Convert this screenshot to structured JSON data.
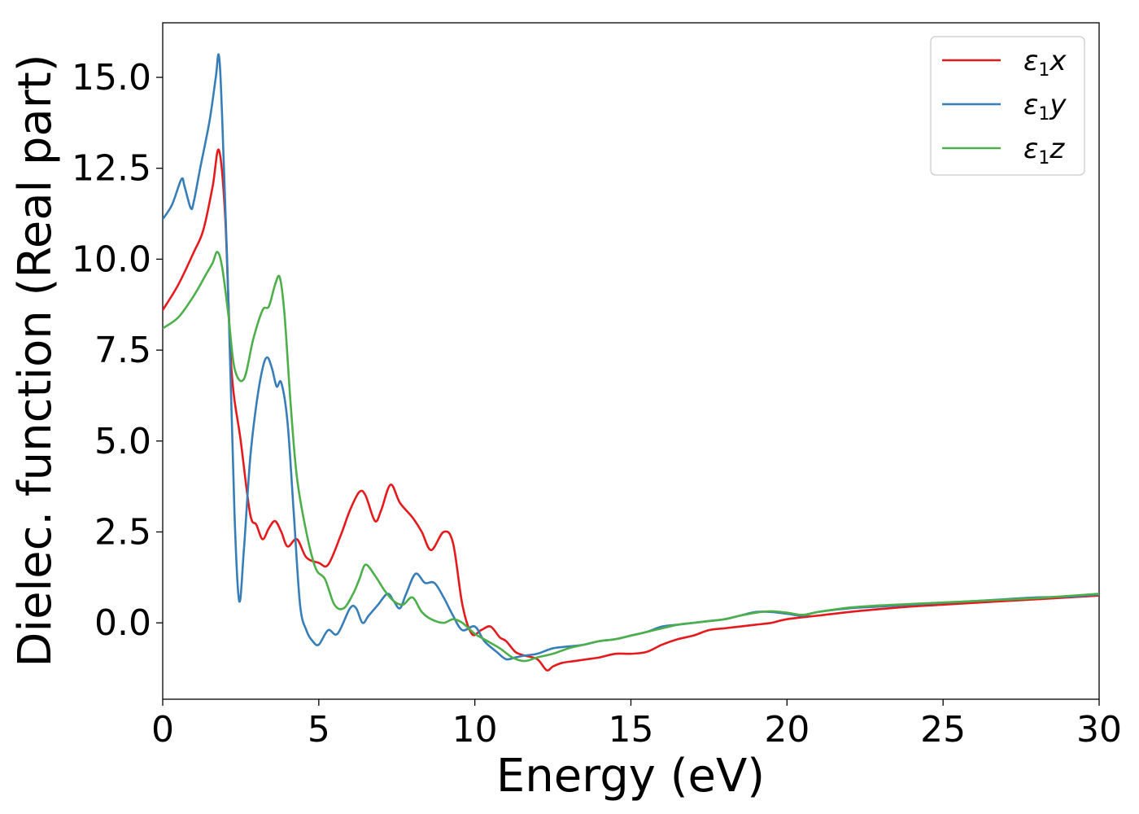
{
  "chart_data": {
    "type": "line",
    "xlabel": "Energy (eV)",
    "ylabel": "Dielec. function (Real part)",
    "xlim": [
      0,
      30
    ],
    "ylim": [
      -2.1,
      16.5
    ],
    "xticks": [
      0,
      5,
      10,
      15,
      20,
      25,
      30
    ],
    "yticks": [
      0.0,
      2.5,
      5.0,
      7.5,
      10.0,
      12.5,
      15.0
    ],
    "xtick_labels": [
      "0",
      "5",
      "10",
      "15",
      "20",
      "25",
      "30"
    ],
    "ytick_labels": [
      "0.0",
      "2.5",
      "5.0",
      "7.5",
      "10.0",
      "12.5",
      "15.0"
    ],
    "grid": false,
    "legend_position": "top-right",
    "series": [
      {
        "name": "ε1x",
        "legend_symbol": "ε",
        "legend_sub": "1",
        "legend_var": "x",
        "color": "#e41a1c",
        "x": [
          0,
          0.5,
          1.0,
          1.3,
          1.6,
          1.8,
          2.0,
          2.2,
          2.5,
          2.8,
          3.0,
          3.2,
          3.4,
          3.6,
          3.8,
          4.0,
          4.3,
          4.6,
          5.0,
          5.3,
          5.7,
          6.0,
          6.3,
          6.5,
          6.8,
          7.0,
          7.3,
          7.6,
          8.0,
          8.3,
          8.6,
          9.0,
          9.3,
          9.6,
          9.9,
          10.2,
          10.5,
          10.8,
          11.0,
          11.3,
          11.6,
          12.0,
          12.3,
          12.5,
          12.8,
          13.2,
          13.6,
          14.0,
          14.5,
          15.0,
          15.5,
          16.0,
          16.5,
          17.0,
          17.5,
          18.0,
          18.5,
          19.0,
          19.5,
          20.0,
          21.0,
          22.0,
          23.0,
          24.0,
          25.0,
          26.0,
          27.0,
          28.0,
          29.0,
          30.0
        ],
        "y": [
          8.6,
          9.3,
          10.2,
          10.8,
          12.0,
          13.0,
          11.2,
          7.0,
          5.0,
          3.0,
          2.7,
          2.3,
          2.6,
          2.8,
          2.5,
          2.1,
          2.3,
          1.8,
          1.65,
          1.6,
          2.4,
          3.1,
          3.6,
          3.5,
          2.8,
          3.1,
          3.8,
          3.3,
          2.9,
          2.5,
          2.0,
          2.5,
          2.2,
          0.5,
          -0.3,
          -0.2,
          -0.1,
          -0.4,
          -0.5,
          -0.8,
          -0.9,
          -1.0,
          -1.3,
          -1.2,
          -1.1,
          -1.05,
          -1.0,
          -0.95,
          -0.85,
          -0.85,
          -0.8,
          -0.6,
          -0.45,
          -0.35,
          -0.2,
          -0.15,
          -0.1,
          -0.05,
          0.0,
          0.1,
          0.2,
          0.3,
          0.38,
          0.45,
          0.5,
          0.55,
          0.6,
          0.65,
          0.7,
          0.75
        ]
      },
      {
        "name": "ε1y",
        "legend_symbol": "ε",
        "legend_sub": "1",
        "legend_var": "y",
        "color": "#377eb8",
        "x": [
          0,
          0.3,
          0.6,
          0.7,
          0.9,
          1.0,
          1.2,
          1.5,
          1.7,
          1.8,
          1.9,
          2.1,
          2.3,
          2.45,
          2.6,
          2.8,
          3.0,
          3.2,
          3.35,
          3.5,
          3.65,
          3.8,
          4.0,
          4.2,
          4.4,
          4.6,
          4.8,
          5.0,
          5.3,
          5.6,
          6.0,
          6.2,
          6.4,
          6.6,
          6.9,
          7.2,
          7.4,
          7.6,
          7.8,
          8.1,
          8.4,
          8.7,
          9.0,
          9.3,
          9.6,
          10.0,
          10.3,
          10.7,
          11.0,
          11.3,
          11.6,
          12.0,
          12.5,
          13.0,
          13.5,
          14.0,
          14.5,
          15.0,
          15.5,
          16.0,
          16.5,
          17.0,
          17.5,
          18.0,
          18.5,
          19.0,
          19.5,
          20.0,
          20.5,
          21.0,
          22.0,
          23.0,
          24.0,
          25.0,
          26.0,
          27.0,
          28.0,
          29.0,
          30.0
        ],
        "y": [
          11.1,
          11.5,
          12.2,
          12.0,
          11.4,
          11.6,
          12.5,
          13.8,
          15.0,
          15.6,
          14.0,
          9.0,
          3.0,
          0.6,
          2.0,
          4.5,
          6.0,
          7.0,
          7.3,
          7.0,
          6.5,
          6.6,
          5.5,
          3.0,
          0.5,
          -0.2,
          -0.5,
          -0.6,
          -0.2,
          -0.3,
          0.4,
          0.4,
          0.0,
          0.2,
          0.5,
          0.8,
          0.6,
          0.4,
          0.8,
          1.35,
          1.1,
          1.1,
          0.7,
          0.2,
          -0.2,
          -0.1,
          -0.5,
          -0.8,
          -1.0,
          -0.95,
          -0.9,
          -0.85,
          -0.7,
          -0.65,
          -0.6,
          -0.5,
          -0.45,
          -0.35,
          -0.25,
          -0.1,
          -0.05,
          0.0,
          0.05,
          0.1,
          0.2,
          0.3,
          0.3,
          0.25,
          0.2,
          0.3,
          0.4,
          0.45,
          0.5,
          0.55,
          0.6,
          0.65,
          0.7,
          0.72,
          0.78
        ]
      },
      {
        "name": "ε1z",
        "legend_symbol": "ε",
        "legend_sub": "1",
        "legend_var": "z",
        "color": "#4daf4a",
        "x": [
          0,
          0.5,
          1.0,
          1.4,
          1.6,
          1.75,
          1.9,
          2.1,
          2.3,
          2.6,
          2.9,
          3.2,
          3.4,
          3.6,
          3.75,
          3.9,
          4.1,
          4.3,
          4.6,
          4.9,
          5.2,
          5.5,
          5.8,
          6.1,
          6.3,
          6.5,
          6.8,
          7.1,
          7.4,
          7.7,
          8.0,
          8.3,
          8.6,
          9.0,
          9.3,
          9.6,
          10.0,
          10.4,
          10.8,
          11.2,
          11.6,
          12.0,
          12.5,
          13.0,
          13.5,
          14.0,
          14.5,
          15.0,
          15.5,
          16.0,
          16.5,
          17.0,
          17.5,
          18.0,
          18.5,
          19.0,
          19.5,
          20.0,
          20.5,
          21.0,
          22.0,
          23.0,
          24.0,
          25.0,
          26.0,
          27.0,
          28.0,
          29.0,
          30.0
        ],
        "y": [
          8.1,
          8.4,
          9.0,
          9.6,
          9.9,
          10.2,
          9.8,
          8.5,
          7.0,
          6.7,
          7.8,
          8.6,
          8.7,
          9.3,
          9.5,
          8.5,
          6.0,
          4.0,
          2.5,
          1.5,
          1.2,
          0.5,
          0.4,
          0.8,
          1.2,
          1.6,
          1.3,
          0.9,
          0.6,
          0.5,
          0.7,
          0.3,
          0.1,
          0.0,
          0.1,
          0.0,
          -0.3,
          -0.5,
          -0.7,
          -0.95,
          -1.05,
          -0.95,
          -0.85,
          -0.7,
          -0.6,
          -0.5,
          -0.45,
          -0.35,
          -0.25,
          -0.15,
          -0.05,
          0.0,
          0.05,
          0.1,
          0.2,
          0.28,
          0.32,
          0.28,
          0.22,
          0.3,
          0.42,
          0.48,
          0.52,
          0.56,
          0.6,
          0.64,
          0.68,
          0.74,
          0.8
        ]
      }
    ]
  }
}
